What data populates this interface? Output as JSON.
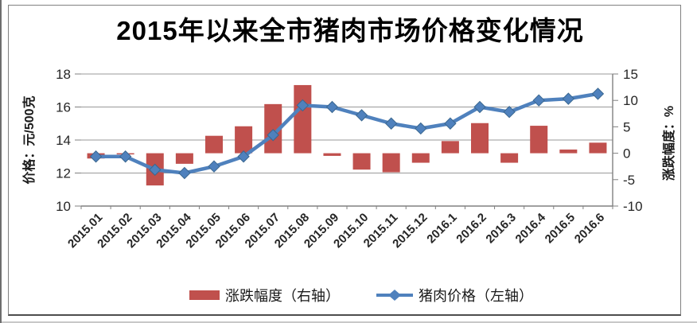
{
  "title": "2015年以来全市猪肉市场价格变化情况",
  "colors": {
    "bar": "#C0504D",
    "line": "#4F81BD",
    "marker_edge": "#3A6790",
    "grid": "#999999",
    "axis": "#808080",
    "tick_text": "#262626",
    "title_text": "#000000"
  },
  "chart_data": {
    "type": "bar+line combo",
    "title": "2015年以来全市猪肉市场价格变化情况",
    "categories": [
      "2015.01",
      "2015.02",
      "2015.03",
      "2015.04",
      "2015.05",
      "2015.06",
      "2015.07",
      "2015.08",
      "2015.09",
      "2015.10",
      "2015.11",
      "2015.12",
      "2016.1",
      "2016.2",
      "2016.3",
      "2016.4",
      "2016.5",
      "2016.6"
    ],
    "series": [
      {
        "name": "涨跌幅度（右轴）",
        "type": "bar",
        "axis": "right",
        "color": "#C0504D",
        "values": [
          -1.0,
          -0.2,
          -6.1,
          -2.0,
          3.3,
          5.1,
          9.3,
          12.9,
          -0.5,
          -3.1,
          -3.6,
          -1.8,
          2.3,
          5.7,
          -1.8,
          5.2,
          0.7,
          2.0
        ]
      },
      {
        "name": "猪肉价格（左轴）",
        "type": "line",
        "axis": "left",
        "color": "#4F81BD",
        "values": [
          13.0,
          13.0,
          12.2,
          12.0,
          12.4,
          13.0,
          14.3,
          16.1,
          16.0,
          15.5,
          15.0,
          14.7,
          15.0,
          16.0,
          15.7,
          16.4,
          16.5,
          16.8
        ]
      }
    ],
    "left_axis": {
      "title": "价格：元/500克",
      "min": 10,
      "max": 18,
      "ticks": [
        10,
        12,
        14,
        16,
        18
      ]
    },
    "right_axis": {
      "title": "涨跌幅度：%",
      "min": -10,
      "max": 15,
      "ticks": [
        -10,
        -5,
        0,
        5,
        10,
        15
      ]
    },
    "grid": true,
    "legend_position": "bottom"
  }
}
